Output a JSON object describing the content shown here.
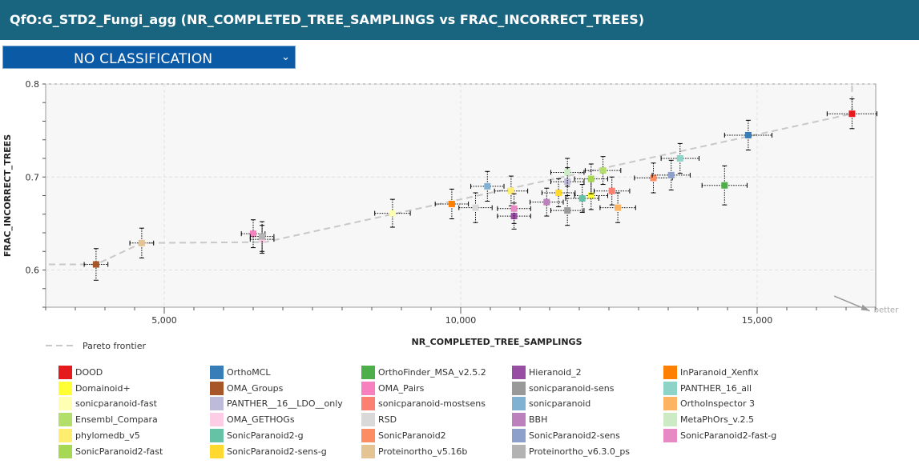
{
  "header": {
    "title": "QfO:G_STD2_Fungi_agg (NR_COMPLETED_TREE_SAMPLINGS vs FRAC_INCORRECT_TREES)"
  },
  "classification": {
    "selected": "NO CLASSIFICATION",
    "icon": "chevron-down-icon"
  },
  "chart_data": {
    "type": "scatter",
    "xlabel": "NR_COMPLETED_TREE_SAMPLINGS",
    "ylabel": "FRAC_INCORRECT_TREES",
    "xlim": [
      3000,
      17000
    ],
    "ylim": [
      0.56,
      0.8
    ],
    "xticks": [
      {
        "v": 5000,
        "label": "5,000"
      },
      {
        "v": 10000,
        "label": "10,000"
      },
      {
        "v": 15000,
        "label": "15,000"
      }
    ],
    "yticks": [
      {
        "v": 0.6,
        "label": "0.6"
      },
      {
        "v": 0.7,
        "label": "0.7"
      },
      {
        "v": 0.8,
        "label": "0.8"
      }
    ],
    "grid": true,
    "better_label": "better",
    "pareto_label": "Pareto frontier",
    "pareto": [
      [
        2000,
        0.606
      ],
      [
        3850,
        0.606
      ],
      [
        4620,
        0.629
      ],
      [
        6700,
        0.63
      ],
      [
        16600,
        0.768
      ],
      [
        16600,
        0.8
      ]
    ],
    "series": [
      {
        "name": "DOOD",
        "color": "#e41a1c",
        "x": 16600,
        "y": 0.768,
        "xe": 420,
        "ye": 0.016
      },
      {
        "name": "OrthoMCL",
        "color": "#377eb8",
        "x": 14850,
        "y": 0.745,
        "xe": 400,
        "ye": 0.016
      },
      {
        "name": "OrthoFinder_MSA_v2.5.2",
        "color": "#4daf4a",
        "x": 14450,
        "y": 0.691,
        "xe": 380,
        "ye": 0.021
      },
      {
        "name": "Hieranoid_2",
        "color": "#984ea3",
        "x": 10900,
        "y": 0.658,
        "xe": 280,
        "ye": 0.014
      },
      {
        "name": "InParanoid_Xenfix",
        "color": "#ff7f00",
        "x": 9850,
        "y": 0.671,
        "xe": 280,
        "ye": 0.016
      },
      {
        "name": "Domainoid+",
        "color": "#ffff33",
        "x": 12200,
        "y": 0.68,
        "xe": 280,
        "ye": 0.015
      },
      {
        "name": "OMA_Groups",
        "color": "#a65628",
        "x": 3850,
        "y": 0.606,
        "xe": 200,
        "ye": 0.017
      },
      {
        "name": "OMA_Pairs",
        "color": "#f781bf",
        "x": 6500,
        "y": 0.639,
        "xe": 200,
        "ye": 0.015
      },
      {
        "name": "sonicparanoid-sens",
        "color": "#999999",
        "x": 11800,
        "y": 0.664,
        "xe": 280,
        "ye": 0.016
      },
      {
        "name": "PANTHER_16_all",
        "color": "#8dd3c7",
        "x": 13700,
        "y": 0.72,
        "xe": 320,
        "ye": 0.016
      },
      {
        "name": "sonicparanoid-fast",
        "color": "#ffffb3",
        "x": 8850,
        "y": 0.661,
        "xe": 300,
        "ye": 0.015
      },
      {
        "name": "PANTHER__16__LDO__only",
        "color": "#bebada",
        "x": 11800,
        "y": 0.695,
        "xe": 280,
        "ye": 0.015
      },
      {
        "name": "sonicparanoid-mostsens",
        "color": "#fb8072",
        "x": 12550,
        "y": 0.685,
        "xe": 300,
        "ye": 0.015
      },
      {
        "name": "sonicparanoid",
        "color": "#80b1d3",
        "x": 10450,
        "y": 0.69,
        "xe": 280,
        "ye": 0.016
      },
      {
        "name": "OrthoInspector 3",
        "color": "#fdb462",
        "x": 12650,
        "y": 0.667,
        "xe": 300,
        "ye": 0.016
      },
      {
        "name": "Ensembl_Compara",
        "color": "#b3de69",
        "x": 12400,
        "y": 0.707,
        "xe": 300,
        "ye": 0.015
      },
      {
        "name": "OMA_GETHOGs",
        "color": "#fccde5",
        "x": 6650,
        "y": 0.633,
        "xe": 200,
        "ye": 0.015
      },
      {
        "name": "RSD",
        "color": "#d9d9d9",
        "x": 10250,
        "y": 0.667,
        "xe": 280,
        "ye": 0.016
      },
      {
        "name": "BBH",
        "color": "#bc80bd",
        "x": 11450,
        "y": 0.673,
        "xe": 280,
        "ye": 0.015
      },
      {
        "name": "MetaPhOrs_v.2.5",
        "color": "#ccebc5",
        "x": 11800,
        "y": 0.705,
        "xe": 280,
        "ye": 0.015
      },
      {
        "name": "phylomedb_v5",
        "color": "#ffed6f",
        "x": 10850,
        "y": 0.685,
        "xe": 280,
        "ye": 0.016
      },
      {
        "name": "SonicParanoid2-g",
        "color": "#66c2a5",
        "x": 12050,
        "y": 0.677,
        "xe": 280,
        "ye": 0.015
      },
      {
        "name": "SonicParanoid2",
        "color": "#fc8d62",
        "x": 13250,
        "y": 0.699,
        "xe": 320,
        "ye": 0.016
      },
      {
        "name": "SonicParanoid2-sens",
        "color": "#8da0cb",
        "x": 13550,
        "y": 0.702,
        "xe": 320,
        "ye": 0.016
      },
      {
        "name": "SonicParanoid2-fast-g",
        "color": "#e78ac3",
        "x": 10900,
        "y": 0.666,
        "xe": 280,
        "ye": 0.016
      },
      {
        "name": "SonicParanoid2-fast",
        "color": "#a6d854",
        "x": 12200,
        "y": 0.698,
        "xe": 280,
        "ye": 0.016
      },
      {
        "name": "SonicParanoid2-sens-g",
        "color": "#ffd92f",
        "x": 11650,
        "y": 0.683,
        "xe": 280,
        "ye": 0.015
      },
      {
        "name": "Proteinortho_v5.16b",
        "color": "#e5c494",
        "x": 4620,
        "y": 0.629,
        "xe": 200,
        "ye": 0.016
      },
      {
        "name": "Proteinortho_v6.3.0_ps",
        "color": "#b3b3b3",
        "x": 6650,
        "y": 0.636,
        "xe": 200,
        "ye": 0.016
      }
    ]
  },
  "legend": {
    "items": [
      {
        "label": "DOOD",
        "color": "#e41a1c"
      },
      {
        "label": "OrthoMCL",
        "color": "#377eb8"
      },
      {
        "label": "OrthoFinder_MSA_v2.5.2",
        "color": "#4daf4a"
      },
      {
        "label": "Hieranoid_2",
        "color": "#984ea3"
      },
      {
        "label": "InParanoid_Xenfix",
        "color": "#ff7f00"
      },
      {
        "label": "Domainoid+",
        "color": "#ffff33"
      },
      {
        "label": "OMA_Groups",
        "color": "#a65628"
      },
      {
        "label": "OMA_Pairs",
        "color": "#f781bf"
      },
      {
        "label": "sonicparanoid-sens",
        "color": "#999999"
      },
      {
        "label": "PANTHER_16_all",
        "color": "#8dd3c7"
      },
      {
        "label": "sonicparanoid-fast",
        "color": "#ffffb3"
      },
      {
        "label": "PANTHER__16__LDO__only",
        "color": "#bebada"
      },
      {
        "label": "sonicparanoid-mostsens",
        "color": "#fb8072"
      },
      {
        "label": "sonicparanoid",
        "color": "#80b1d3"
      },
      {
        "label": "OrthoInspector 3",
        "color": "#fdb462"
      },
      {
        "label": "Ensembl_Compara",
        "color": "#b3de69"
      },
      {
        "label": "OMA_GETHOGs",
        "color": "#fccde5"
      },
      {
        "label": "RSD",
        "color": "#d9d9d9"
      },
      {
        "label": "BBH",
        "color": "#bc80bd"
      },
      {
        "label": "MetaPhOrs_v.2.5",
        "color": "#ccebc5"
      },
      {
        "label": "phylomedb_v5",
        "color": "#ffed6f"
      },
      {
        "label": "SonicParanoid2-g",
        "color": "#66c2a5"
      },
      {
        "label": "SonicParanoid2",
        "color": "#fc8d62"
      },
      {
        "label": "SonicParanoid2-sens",
        "color": "#8da0cb"
      },
      {
        "label": "SonicParanoid2-fast-g",
        "color": "#e78ac3"
      },
      {
        "label": "SonicParanoid2-fast",
        "color": "#a6d854"
      },
      {
        "label": "SonicParanoid2-sens-g",
        "color": "#ffd92f"
      },
      {
        "label": "Proteinortho_v5.16b",
        "color": "#e5c494"
      },
      {
        "label": "Proteinortho_v6.3.0_ps",
        "color": "#b3b3b3"
      }
    ]
  }
}
